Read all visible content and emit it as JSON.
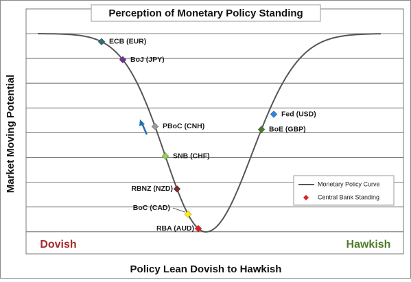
{
  "header": {
    "title": "Perception of Monetary Policy Standing"
  },
  "axes": {
    "y_label": "Market Moving Potential",
    "x_label": "Policy Lean Dovish to Hawkish",
    "left_label": "Dovish",
    "right_label": "Hawkish"
  },
  "legend": {
    "items": [
      "Monetary Policy Curve",
      "Central Bank Standing"
    ]
  },
  "points": [
    {
      "label": "ECB (EUR)"
    },
    {
      "label": "BoJ (JPY)"
    },
    {
      "label": "PBoC (CNH)"
    },
    {
      "label": "SNB (CHF)"
    },
    {
      "label": "RBNZ (NZD)"
    },
    {
      "label": "BoC (CAD)"
    },
    {
      "label": "RBA (AUD)"
    },
    {
      "label": "Fed (USD)"
    },
    {
      "label": "BoE (GBP)"
    }
  ]
}
